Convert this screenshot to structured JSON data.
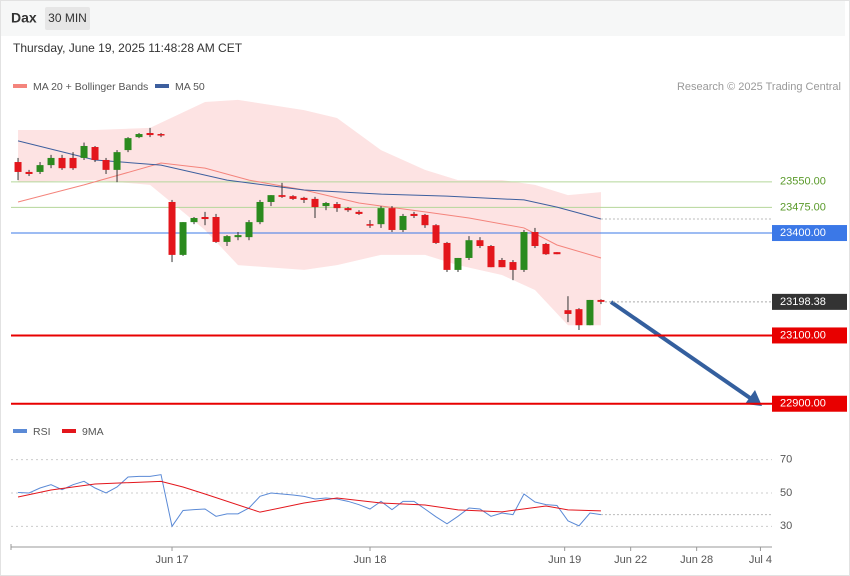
{
  "header": {
    "symbol": "Dax",
    "interval": "30 MIN",
    "timestamp": "Thursday, June 19, 2025 11:48:28 AM CET",
    "credit": "Research © 2025 Trading Central"
  },
  "chart_data": [
    {
      "type": "candlestick",
      "up_color": "#2b8a1e",
      "down_color": "#e3161c",
      "x": [
        0,
        1,
        2,
        3,
        4,
        5,
        6,
        7,
        8,
        9,
        10,
        11,
        12,
        13,
        14,
        15,
        16,
        17,
        18,
        19,
        20,
        21,
        22,
        23,
        24,
        25,
        26,
        27,
        28,
        29,
        30,
        31,
        32,
        33,
        34,
        35,
        36,
        37,
        38,
        39,
        40,
        41,
        42,
        43,
        44,
        45,
        46,
        47,
        48,
        49,
        50,
        51,
        52,
        53
      ],
      "open": [
        23608,
        23579,
        23579,
        23599,
        23620,
        23620,
        23620,
        23652,
        23614,
        23585,
        23643,
        23681,
        23693,
        23690,
        23491,
        23336,
        23432,
        23447,
        23447,
        23374,
        23388,
        23388,
        23432,
        23491,
        23511,
        23508,
        23503,
        23500,
        23479,
        23485,
        23473,
        23462,
        23426,
        23426,
        23473,
        23409,
        23456,
        23453,
        23423,
        23371,
        23292,
        23327,
        23379,
        23362,
        23321,
        23315,
        23292,
        23403,
        23368,
        23344,
        23174,
        23177,
        23130,
        23204
      ],
      "high": [
        23620,
        23585,
        23608,
        23629,
        23629,
        23637,
        23665,
        23655,
        23620,
        23643,
        23681,
        23693,
        23708,
        23693,
        23497,
        23432,
        23447,
        23462,
        23456,
        23394,
        23403,
        23438,
        23497,
        23511,
        23547,
        23511,
        23506,
        23506,
        23491,
        23491,
        23476,
        23467,
        23438,
        23479,
        23479,
        23456,
        23462,
        23456,
        23426,
        23374,
        23327,
        23391,
        23388,
        23365,
        23327,
        23321,
        23409,
        23415,
        23371,
        23344,
        23215,
        23180,
        23204,
        23206
      ],
      "low": [
        23555,
        23567,
        23573,
        23590,
        23585,
        23585,
        23614,
        23608,
        23573,
        23549,
        23637,
        23678,
        23681,
        23681,
        23315,
        23333,
        23426,
        23423,
        23371,
        23362,
        23379,
        23379,
        23426,
        23479,
        23503,
        23497,
        23488,
        23444,
        23467,
        23462,
        23462,
        23453,
        23415,
        23415,
        23403,
        23403,
        23444,
        23415,
        23368,
        23286,
        23286,
        23321,
        23356,
        23300,
        23300,
        23262,
        23286,
        23356,
        23336,
        23338,
        23139,
        23116,
        23130,
        23192
      ],
      "close": [
        23579,
        23573,
        23599,
        23620,
        23590,
        23590,
        23655,
        23614,
        23585,
        23637,
        23678,
        23690,
        23687,
        23687,
        23336,
        23432,
        23444,
        23441,
        23374,
        23391,
        23394,
        23432,
        23491,
        23511,
        23506,
        23500,
        23497,
        23476,
        23488,
        23473,
        23467,
        23456,
        23423,
        23473,
        23409,
        23450,
        23450,
        23423,
        23371,
        23292,
        23327,
        23379,
        23362,
        23300,
        23300,
        23292,
        23403,
        23362,
        23338,
        23338,
        23163,
        23130,
        23204,
        23198.38
      ],
      "bands": {
        "color": "#fde3e3",
        "x": [
          0,
          7,
          12,
          17,
          20,
          26,
          29,
          33,
          37,
          40,
          44,
          47,
          50,
          53
        ],
        "upper": [
          23702,
          23702,
          23708,
          23784,
          23790,
          23760,
          23737,
          23643,
          23585,
          23555,
          23555,
          23541,
          23511,
          23520
        ],
        "lower": [
          23549,
          23555,
          23541,
          23409,
          23306,
          23292,
          23306,
          23336,
          23336,
          23306,
          23277,
          23233,
          23130,
          23130
        ]
      },
      "series": [
        {
          "name": "MA 20 + Bollinger Bands",
          "color": "#f4847c",
          "x": [
            0,
            6,
            13,
            17,
            21,
            26,
            31,
            37,
            41,
            46,
            49,
            53
          ],
          "values": [
            23491,
            23541,
            23605,
            23590,
            23555,
            23526,
            23488,
            23462,
            23444,
            23415,
            23365,
            23327
          ]
        },
        {
          "name": "MA 50",
          "color": "#3d5f9e",
          "x": [
            0,
            7,
            13,
            19,
            26,
            33,
            39,
            46,
            49,
            53
          ],
          "values": [
            23670,
            23614,
            23599,
            23555,
            23526,
            23514,
            23508,
            23497,
            23476,
            23441
          ]
        }
      ],
      "levels": [
        {
          "value": 23550,
          "label": "23550.00",
          "color": "#b5d69a",
          "text_color": "#5a9a2a",
          "box": false,
          "width": 1
        },
        {
          "value": 23475,
          "label": "23475.00",
          "color": "#b5d69a",
          "text_color": "#5a9a2a",
          "box": false,
          "width": 1
        },
        {
          "value": 23400,
          "label": "23400.00",
          "color": "#3b78e7",
          "text_color": "#ffffff",
          "box": true,
          "width": 1
        },
        {
          "value": 23198.38,
          "label": "23198.38",
          "color": "#333333",
          "text_color": "#ffffff",
          "box": true,
          "width": 1,
          "dashed": true
        },
        {
          "value": 23100,
          "label": "23100.00",
          "color": "#e80000",
          "text_color": "#ffffff",
          "box": true,
          "width": 2
        },
        {
          "value": 22900,
          "label": "22900.00",
          "color": "#e80000",
          "text_color": "#ffffff",
          "box": true,
          "width": 2
        }
      ],
      "xlim": [
        -0.64,
        68.55
      ],
      "ylim": [
        22867,
        23819
      ]
    },
    {
      "type": "line",
      "series": [
        {
          "name": "RSI",
          "color": "#5b8ad6",
          "x": [
            0,
            1,
            2,
            3,
            4,
            5,
            6,
            7,
            8,
            9,
            10,
            11,
            12,
            13,
            14,
            15,
            16,
            17,
            18,
            19,
            20,
            21,
            22,
            23,
            24,
            25,
            26,
            27,
            28,
            29,
            30,
            31,
            32,
            33,
            34,
            35,
            36,
            37,
            38,
            39,
            40,
            41,
            42,
            43,
            44,
            45,
            46,
            47,
            48,
            49,
            50,
            51,
            52,
            53
          ],
          "values": [
            50.3,
            50,
            53,
            55,
            52,
            55,
            57,
            53,
            50,
            53.6,
            59.6,
            60,
            60,
            61,
            30,
            39.5,
            40,
            40.4,
            36,
            37.5,
            37.5,
            41,
            48,
            50,
            49.4,
            48.8,
            48,
            46.4,
            47,
            46.4,
            45,
            43,
            40.4,
            45,
            40,
            45,
            45,
            40.4,
            35.7,
            31.5,
            36,
            41,
            40.4,
            36,
            38,
            37,
            49.4,
            44.6,
            43,
            42.5,
            33.3,
            30.3,
            38,
            37
          ]
        },
        {
          "name": "9MA",
          "color": "#e3161c",
          "x": [
            0,
            3,
            7,
            13,
            15,
            17,
            22,
            26,
            29,
            33,
            37,
            40,
            44,
            48,
            50,
            53
          ],
          "values": [
            47.6,
            51.8,
            55.4,
            57,
            53.6,
            49.4,
            38.5,
            44,
            47,
            44,
            42.8,
            39.9,
            38.7,
            42.2,
            39.9,
            39.3
          ]
        }
      ],
      "xlim": [
        -0.64,
        68.55
      ],
      "ylim": [
        20,
        80
      ],
      "yticks": [
        70,
        50,
        30
      ],
      "xticks": [
        {
          "value": 14,
          "label": "Jun 17"
        },
        {
          "value": 32,
          "label": "Jun 18"
        },
        {
          "value": 49.7,
          "label": "Jun 19"
        },
        {
          "value": 55.7,
          "label": "Jun 22"
        },
        {
          "value": 61.7,
          "label": "Jun 28"
        },
        {
          "value": 67.5,
          "label": "Jul 4"
        }
      ]
    }
  ]
}
